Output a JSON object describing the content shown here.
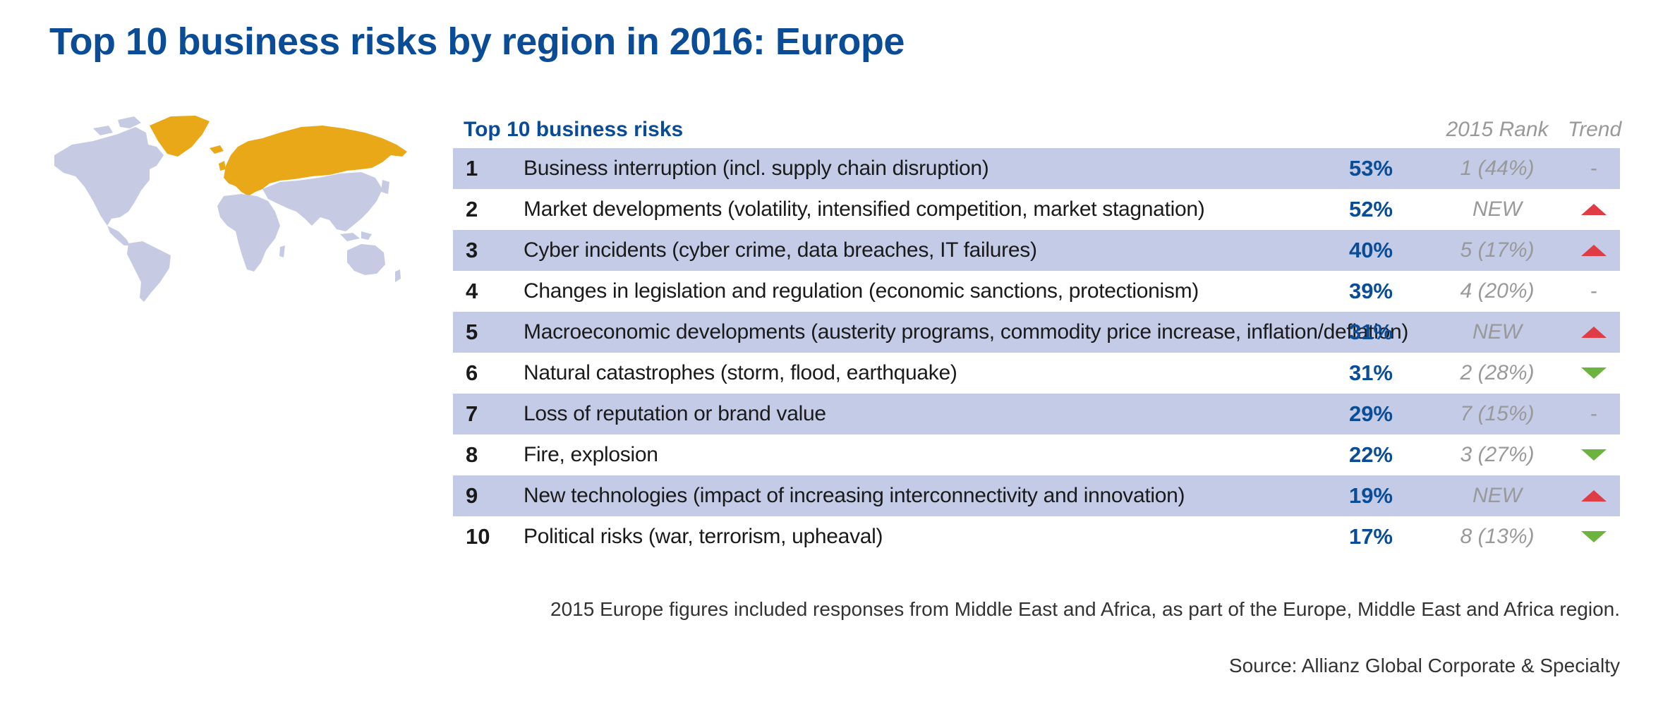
{
  "title": "Top 10 business risks by region in 2016: Europe",
  "colors": {
    "title": "#0a4d96",
    "row_shade": "#c3cbe6",
    "map_land": "#c6cbe3",
    "map_highlight": "#e8a817",
    "trend_up": "#e03c46",
    "trend_down": "#6cb33f"
  },
  "map": {
    "highlighted_region": "Europe"
  },
  "chart_data": {
    "type": "table",
    "columns": {
      "risk": "Top 10 business risks",
      "prev_rank": "2015 Rank",
      "trend": "Trend"
    },
    "rows": [
      {
        "rank": "1",
        "risk": "Business interruption (incl. supply chain disruption)",
        "pct": "53%",
        "prev": "1 (44%)",
        "trend": "same"
      },
      {
        "rank": "2",
        "risk": "Market developments (volatility, intensified competition, market stagnation)",
        "pct": "52%",
        "prev": "NEW",
        "trend": "up"
      },
      {
        "rank": "3",
        "risk": "Cyber incidents (cyber crime, data breaches, IT failures)",
        "pct": "40%",
        "prev": "5 (17%)",
        "trend": "up"
      },
      {
        "rank": "4",
        "risk": "Changes in legislation and regulation (economic sanctions, protectionism)",
        "pct": "39%",
        "prev": "4 (20%)",
        "trend": "same"
      },
      {
        "rank": "5",
        "risk": "Macroeconomic developments (austerity programs, commodity price increase, inflation/deflation)",
        "pct": "31%",
        "prev": "NEW",
        "trend": "up"
      },
      {
        "rank": "6",
        "risk": "Natural catastrophes (storm, flood, earthquake)",
        "pct": "31%",
        "prev": "2 (28%)",
        "trend": "down"
      },
      {
        "rank": "7",
        "risk": "Loss of reputation or brand value",
        "pct": "29%",
        "prev": "7 (15%)",
        "trend": "same"
      },
      {
        "rank": "8",
        "risk": "Fire, explosion",
        "pct": "22%",
        "prev": "3 (27%)",
        "trend": "down"
      },
      {
        "rank": "9",
        "risk": "New technologies (impact of increasing interconnectivity and innovation)",
        "pct": "19%",
        "prev": "NEW",
        "trend": "up"
      },
      {
        "rank": "10",
        "risk": "Political risks (war, terrorism, upheaval)",
        "pct": "17%",
        "prev": "8 (13%)",
        "trend": "down"
      }
    ],
    "same_symbol": "-"
  },
  "footnote": "2015 Europe figures included responses from Middle East and Africa, as part of the Europe, Middle East and Africa region.",
  "source": "Source: Allianz Global Corporate & Specialty"
}
